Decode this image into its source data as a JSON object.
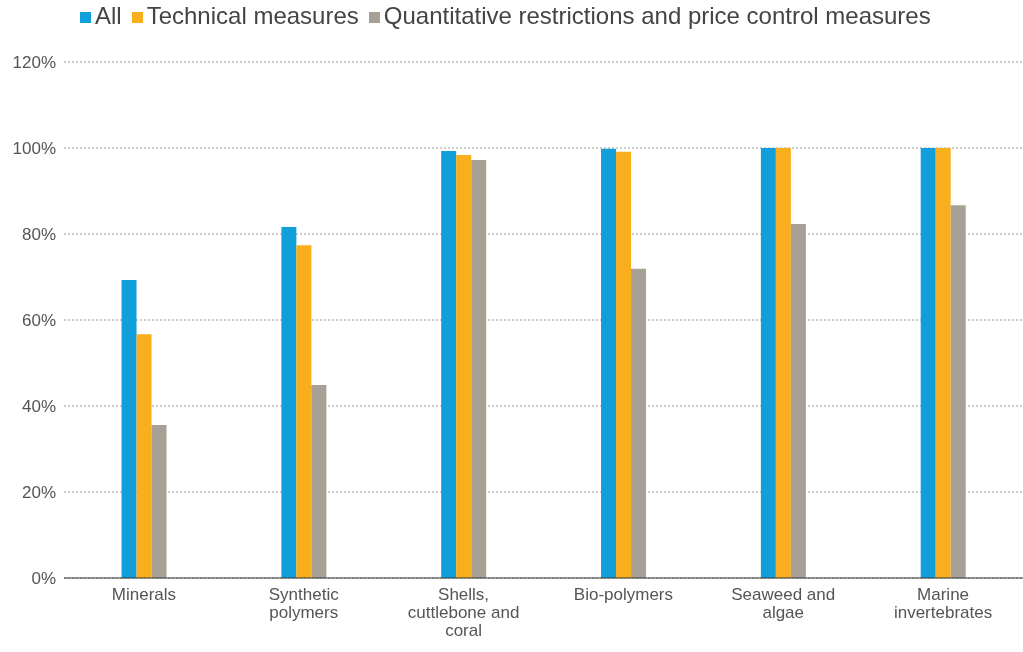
{
  "chart_data": {
    "type": "bar",
    "categories": [
      "Minerals",
      "Synthetic polymers",
      "Shells, cuttlebone and coral",
      "Bio-polymers",
      "Seaweed and algae",
      "Marine invertebrates"
    ],
    "series": [
      {
        "name": "All",
        "color": "#109fda",
        "values": [
          69.3,
          81.6,
          99.3,
          99.8,
          100,
          100
        ]
      },
      {
        "name": "Technical measures",
        "color": "#f9ae1d",
        "values": [
          56.7,
          77.4,
          98.4,
          99.1,
          100,
          100
        ]
      },
      {
        "name": "Quantitative restrictions and price control measures",
        "color": "#a8a095",
        "values": [
          35.6,
          44.9,
          97.2,
          71.9,
          82.3,
          86.7
        ]
      }
    ],
    "ylim": [
      0,
      120
    ],
    "yticks": [
      {
        "value": 0,
        "label": "0%"
      },
      {
        "value": 20,
        "label": "20%"
      },
      {
        "value": 40,
        "label": "40%"
      },
      {
        "value": 60,
        "label": "60%"
      },
      {
        "value": 80,
        "label": "80%"
      },
      {
        "value": 100,
        "label": "100%"
      },
      {
        "value": 120,
        "label": "120%"
      }
    ],
    "grid": "y",
    "legend": "top left"
  }
}
